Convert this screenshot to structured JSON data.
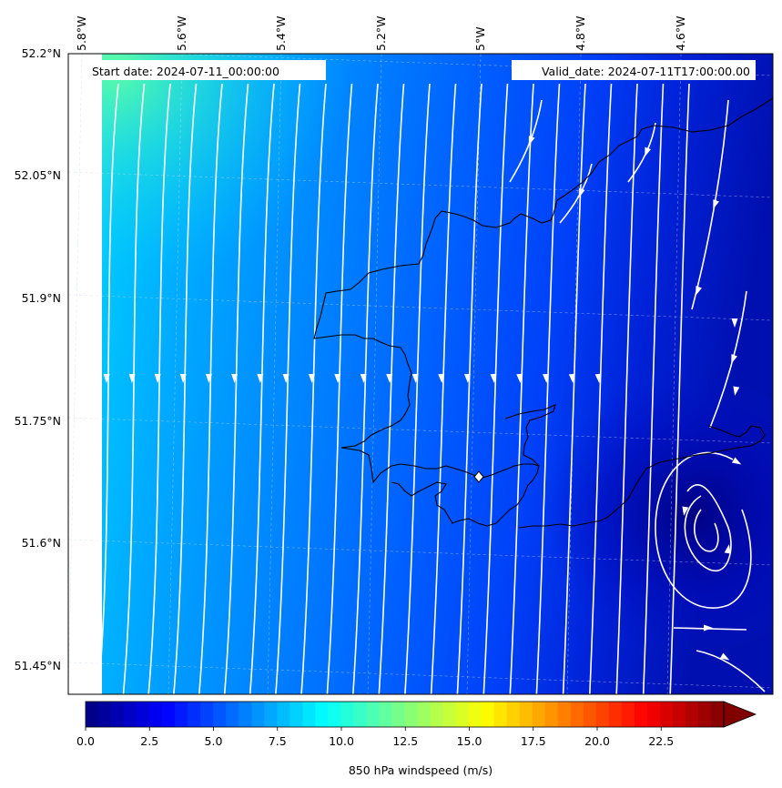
{
  "header": {
    "start_date": "Start date: 2024-07-11_00:00:00",
    "valid_date": "Valid_date: 2024-07-11T17:00:00.00"
  },
  "map": {
    "extent": {
      "lon_min": -5.87,
      "lon_max": -4.42,
      "lat_min": 51.41,
      "lat_max": 52.2
    },
    "lon_ticks": [
      "5.8°W",
      "5.6°W",
      "5.4°W",
      "5.2°W",
      "5°W",
      "4.8°W",
      "4.6°W"
    ],
    "lat_ticks": [
      "52.2°N",
      "52.05°N",
      "51.9°N",
      "51.75°N",
      "51.6°N",
      "51.45°N"
    ],
    "field": "850 hPa windspeed",
    "cyclonic_vortex_center": {
      "lon": -4.56,
      "lat": 51.62
    },
    "marker": {
      "lon": -4.99,
      "lat": 51.69
    }
  },
  "colorbar": {
    "label": "850 hPa windspeed (m/s)",
    "min": 0,
    "max": 25,
    "ticks": [
      "0.0",
      "2.5",
      "5.0",
      "7.5",
      "10.0",
      "12.5",
      "15.0",
      "17.5",
      "20.0",
      "22.5"
    ],
    "extend": "max",
    "colormap": "jet"
  },
  "colors": {
    "streamline": "#ffffff",
    "coastline": "#000000"
  }
}
